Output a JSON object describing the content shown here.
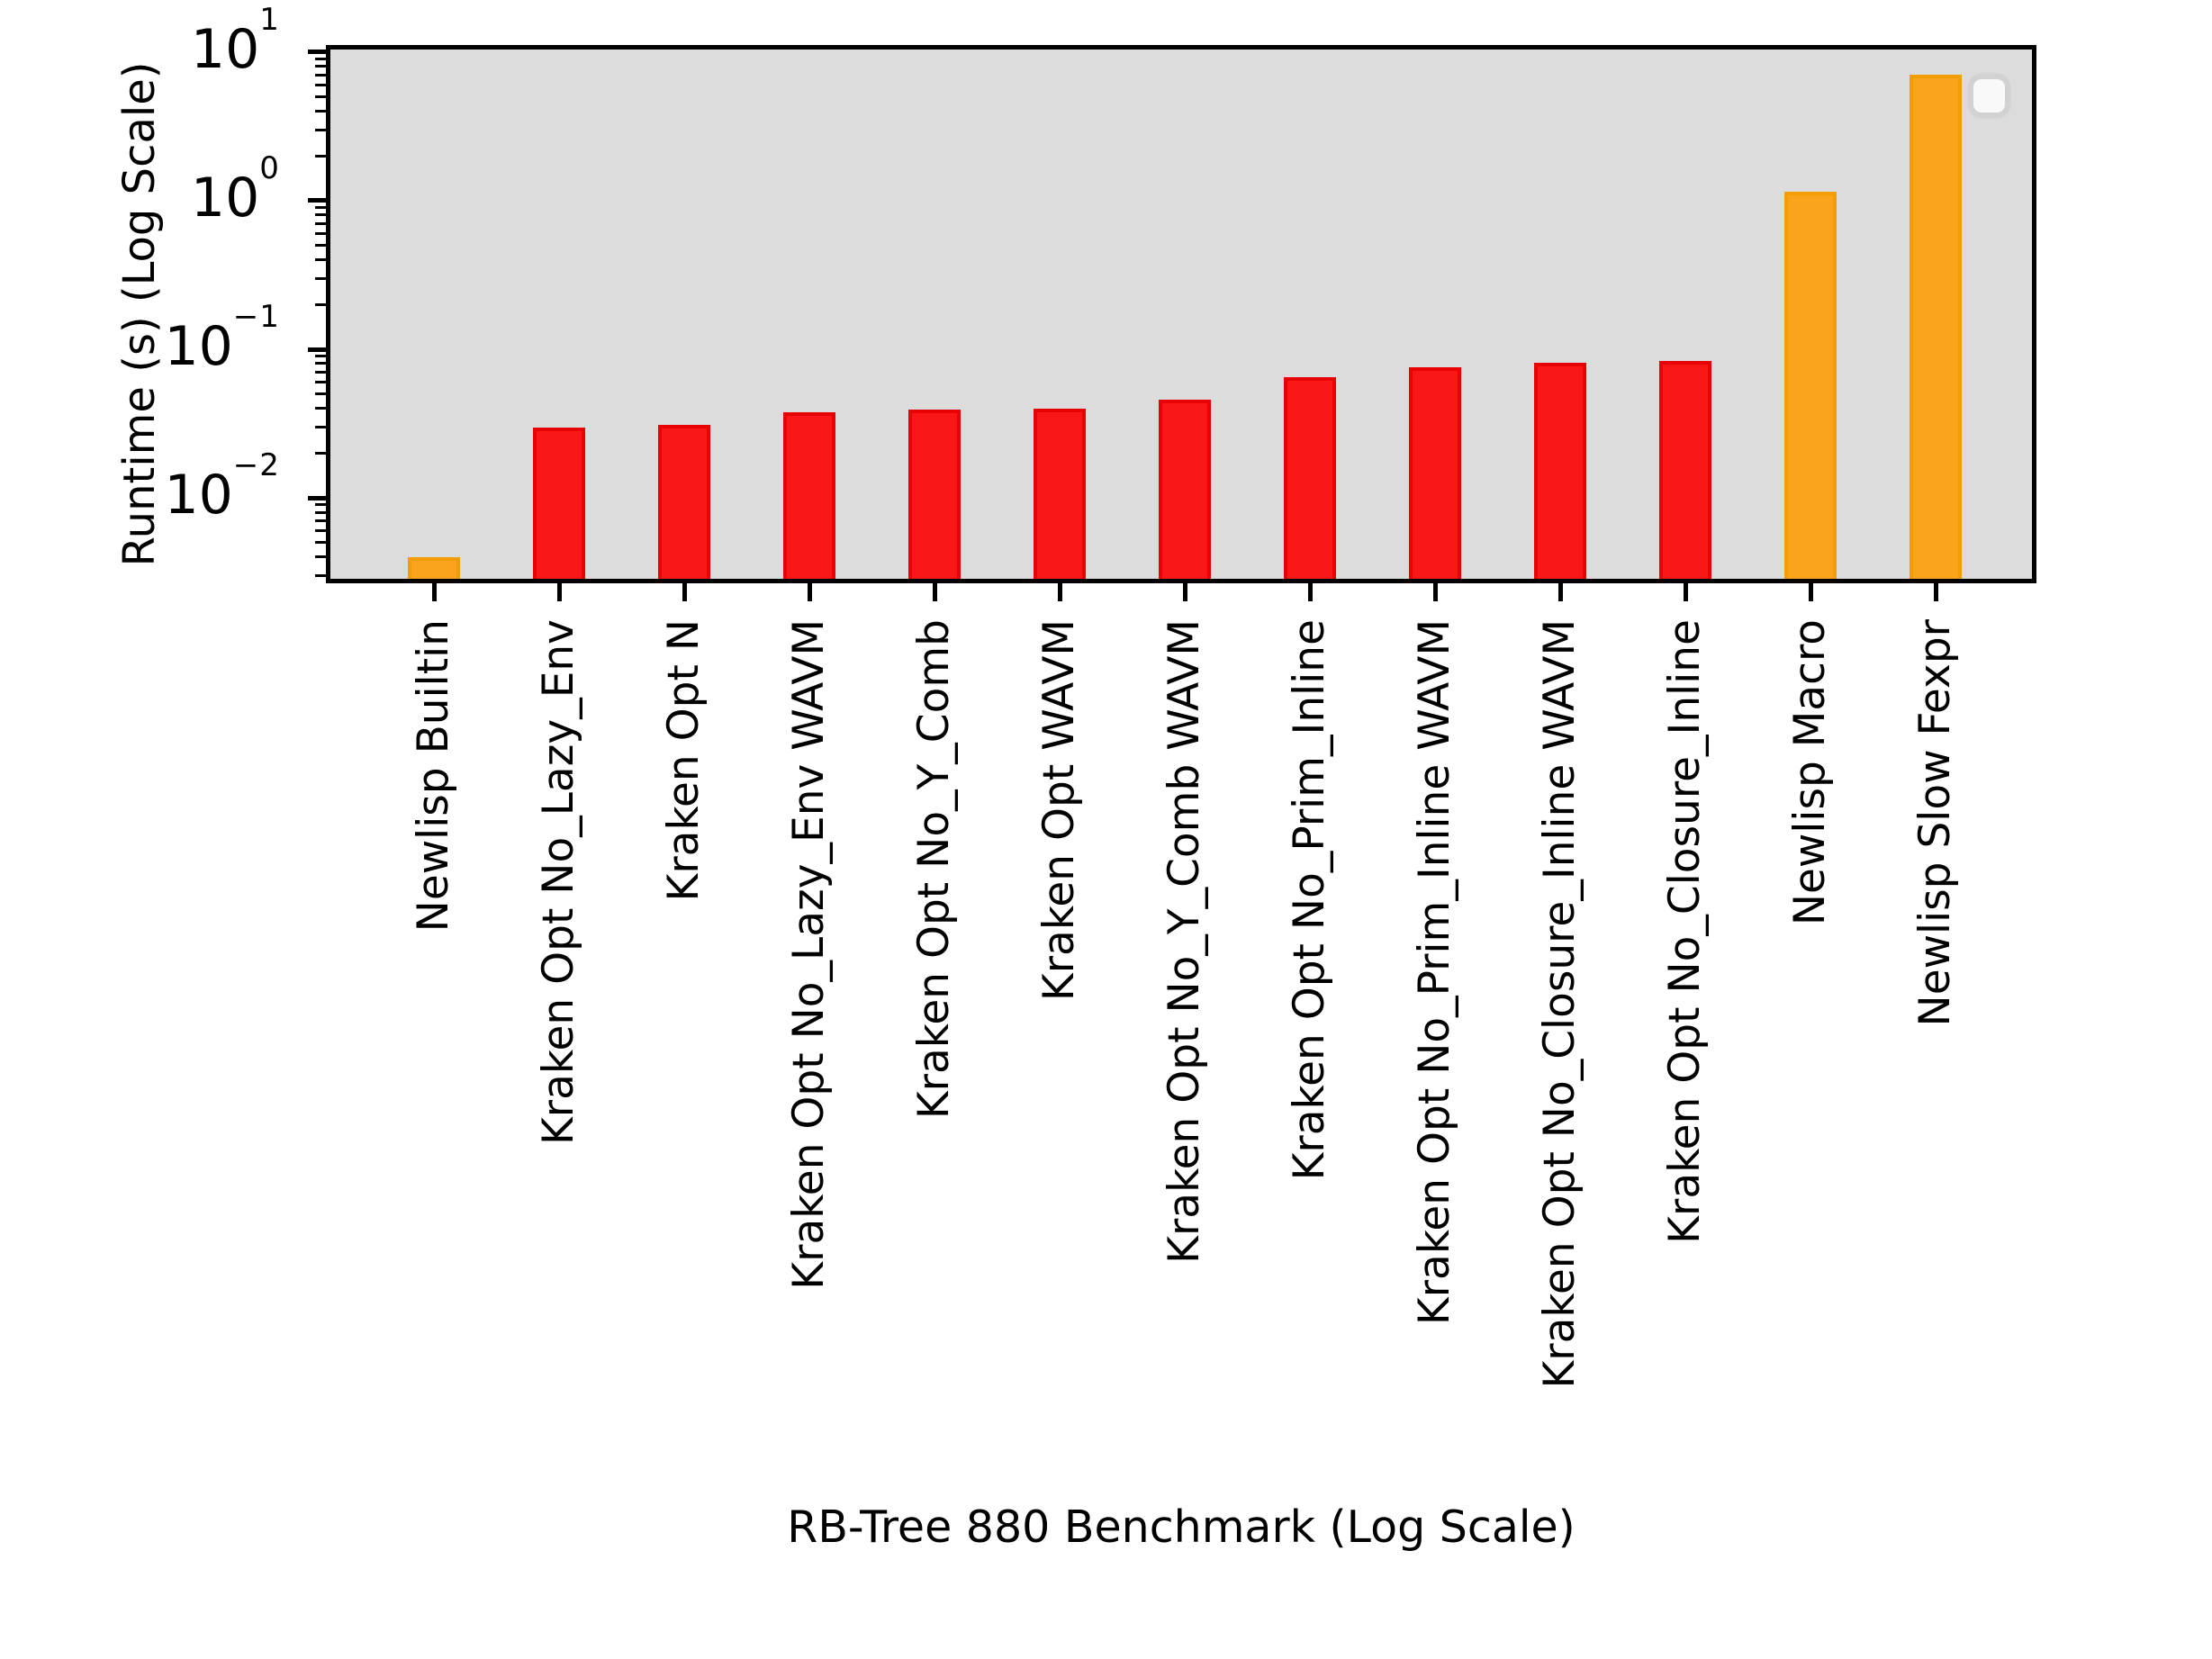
{
  "figure": {
    "background": "#ffffff"
  },
  "plot": {
    "background": "#dcdcdc",
    "spine_color": "#000000"
  },
  "legend": {
    "visible": true,
    "items": [],
    "background": "#f9f9f9",
    "border_color": "#d2d2d2",
    "position": "upper-right"
  },
  "y_axis": {
    "major_ticks": [
      {
        "value": 10,
        "base": "10",
        "sup": "1"
      },
      {
        "value": 1,
        "base": "10",
        "sup": "0"
      },
      {
        "value": 0.1,
        "base": "10",
        "sup": "−1"
      },
      {
        "value": 0.01,
        "base": "10",
        "sup": "−2"
      }
    ]
  },
  "chart_data": {
    "type": "bar",
    "title": "",
    "xlabel": "RB-Tree 880 Benchmark (Log Scale)",
    "ylabel": "Runtime (s) (Log Scale)",
    "yscale": "log",
    "ylim": [
      0.00285,
      10.42
    ],
    "grid": false,
    "legend_position": "upper right (empty box)",
    "categories": [
      "Newlisp Builtin",
      "Kraken Opt No_Lazy_Env",
      "Kraken Opt N",
      "Kraken Opt No_Lazy_Env WAVM",
      "Kraken Opt No_Y_Comb",
      "Kraken Opt WAVM",
      "Kraken Opt No_Y_Comb WAVM",
      "Kraken Opt No_Prim_Inline",
      "Kraken Opt No_Prim_Inline WAVM",
      "Kraken Opt No_Closure_Inline WAVM",
      "Kraken Opt No_Closure_Inline",
      "Newlisp Macro",
      "Newlisp Slow Fexpr"
    ],
    "values": [
      0.004,
      0.0297,
      0.031,
      0.0375,
      0.0395,
      0.04,
      0.0458,
      0.0648,
      0.0757,
      0.081,
      0.0834,
      1.15,
      7.05
    ],
    "bar_color_keys": [
      "orange",
      "red",
      "red",
      "red",
      "red",
      "red",
      "red",
      "red",
      "red",
      "red",
      "red",
      "orange",
      "orange"
    ],
    "palette": {
      "red": {
        "face": "#fa1717",
        "edge": "#e80202"
      },
      "orange": {
        "face": "#faa41b",
        "edge": "#f39d04"
      }
    }
  }
}
